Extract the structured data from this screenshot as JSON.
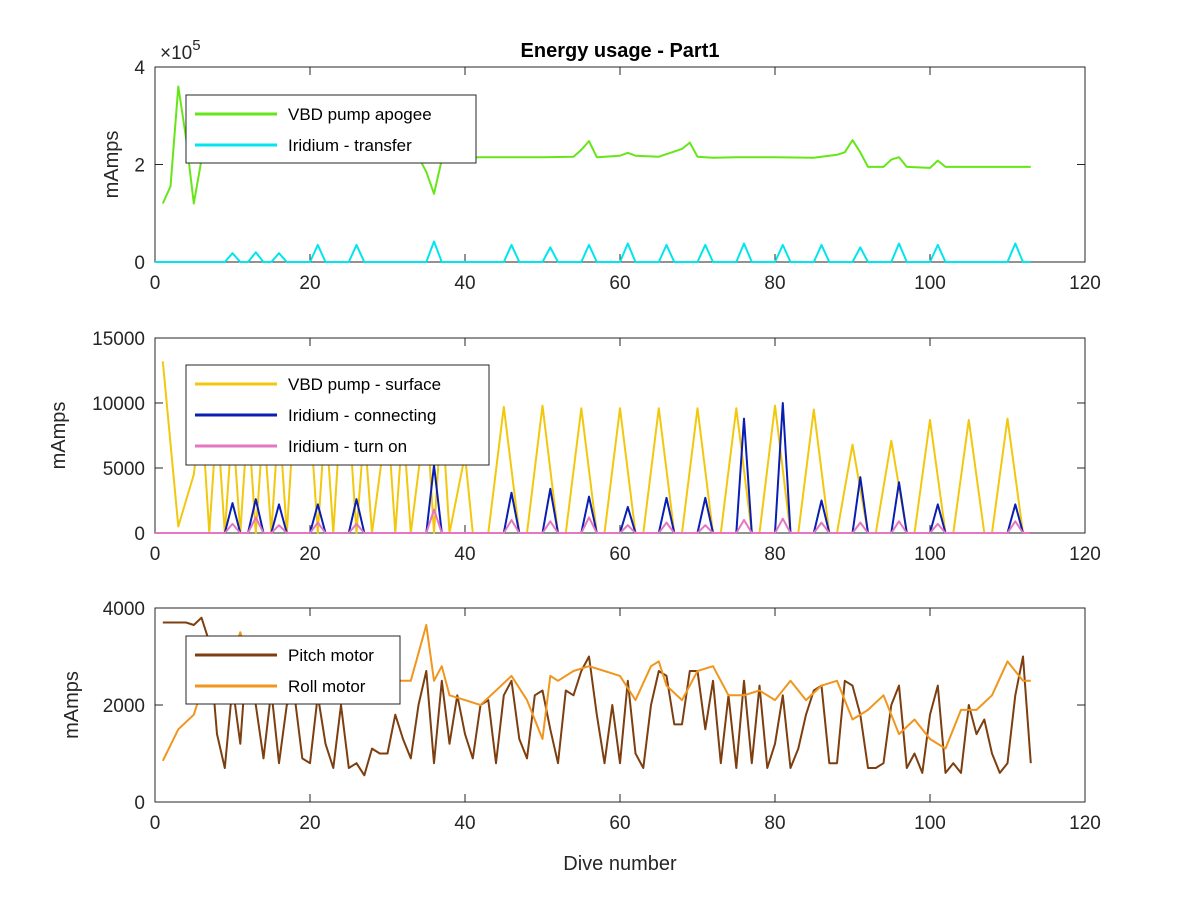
{
  "figure": {
    "title": "Energy usage - Part1",
    "xlabel": "Dive number"
  },
  "chart_data": [
    {
      "type": "line",
      "title": "Energy usage - Part1",
      "xlabel": "",
      "ylabel": "mAmps",
      "xlim": [
        0,
        120
      ],
      "ylim": [
        0,
        400000
      ],
      "xticks": [
        "0",
        "20",
        "40",
        "60",
        "80",
        "100",
        "120"
      ],
      "yticks": [
        "0",
        "2",
        "4"
      ],
      "ytick_values": [
        0,
        200000,
        400000
      ],
      "exponent": {
        "base": "×10",
        "power": "5"
      },
      "grid": false,
      "legend_position": "top-left",
      "series": [
        {
          "name": "VBD pump apogee",
          "color": "#66e619",
          "x": [
            1,
            2,
            3,
            4,
            5,
            6,
            7,
            8,
            10,
            15,
            20,
            30,
            34,
            35,
            36,
            37,
            38,
            40,
            45,
            50,
            54,
            55,
            56,
            57,
            60,
            61,
            62,
            65,
            68,
            69,
            70,
            72,
            75,
            80,
            85,
            88,
            89,
            90,
            91,
            92,
            94,
            95,
            96,
            97,
            100,
            101,
            102,
            105,
            110,
            113
          ],
          "values": [
            120000,
            155000,
            360000,
            255000,
            120000,
            210000,
            215000,
            215000,
            215000,
            215000,
            215000,
            215000,
            215000,
            185000,
            140000,
            210000,
            215000,
            215000,
            215000,
            215000,
            216000,
            230000,
            248000,
            215000,
            218000,
            224000,
            218000,
            216000,
            232000,
            245000,
            216000,
            214000,
            215000,
            215000,
            214000,
            220000,
            225000,
            250000,
            225000,
            195000,
            195000,
            210000,
            215000,
            195000,
            193000,
            208000,
            195000,
            195000,
            195000,
            195000
          ]
        },
        {
          "name": "Iridium - transfer",
          "color": "#00e5ee",
          "x": [
            0,
            9,
            10,
            11,
            12,
            13,
            14,
            15,
            16,
            17,
            20,
            21,
            22,
            25,
            26,
            27,
            35,
            36,
            37,
            45,
            46,
            47,
            50,
            51,
            52,
            55,
            56,
            57,
            60,
            61,
            62,
            65,
            66,
            67,
            70,
            71,
            72,
            75,
            76,
            77,
            80,
            81,
            82,
            85,
            86,
            87,
            90,
            91,
            92,
            95,
            96,
            97,
            100,
            101,
            102,
            110,
            111,
            112,
            113
          ],
          "values": [
            0,
            0,
            18000,
            0,
            0,
            20000,
            0,
            0,
            18000,
            0,
            0,
            35000,
            0,
            0,
            35000,
            0,
            0,
            42000,
            0,
            0,
            35000,
            0,
            0,
            30000,
            0,
            0,
            35000,
            0,
            0,
            38000,
            0,
            0,
            35000,
            0,
            0,
            35000,
            0,
            0,
            38000,
            0,
            0,
            35000,
            0,
            0,
            35000,
            0,
            0,
            30000,
            0,
            0,
            38000,
            0,
            0,
            35000,
            0,
            0,
            38000,
            0,
            0
          ]
        }
      ]
    },
    {
      "type": "line",
      "title": "",
      "xlabel": "",
      "ylabel": "mAmps",
      "xlim": [
        0,
        120
      ],
      "ylim": [
        0,
        15000
      ],
      "xticks": [
        "0",
        "20",
        "40",
        "60",
        "80",
        "100",
        "120"
      ],
      "yticks": [
        "0",
        "5000",
        "10000",
        "15000"
      ],
      "ytick_values": [
        0,
        5000,
        10000,
        15000
      ],
      "grid": false,
      "legend_position": "top-left",
      "series": [
        {
          "name": "VBD pump - surface",
          "color": "#f2c80f",
          "x": [
            1,
            3,
            5,
            6,
            7,
            8,
            9,
            10,
            11,
            12,
            13,
            14,
            15,
            16,
            17,
            18,
            20,
            21,
            22,
            23,
            24,
            25,
            26,
            27,
            28,
            30,
            31,
            32,
            33,
            35,
            36,
            37,
            38,
            40,
            41,
            43,
            45,
            47,
            48,
            50,
            52,
            53,
            55,
            57,
            58,
            60,
            62,
            63,
            65,
            67,
            68,
            70,
            72,
            73,
            75,
            77,
            78,
            80,
            82,
            83,
            85,
            87,
            88,
            90,
            92,
            93,
            95,
            97,
            98,
            100,
            102,
            103,
            105,
            107,
            108,
            110,
            112
          ],
          "values": [
            13200,
            500,
            4500,
            9500,
            0,
            9000,
            0,
            8500,
            0,
            9000,
            0,
            8500,
            0,
            9000,
            0,
            9500,
            9000,
            0,
            9000,
            0,
            9500,
            9000,
            0,
            8000,
            0,
            9000,
            0,
            8500,
            0,
            9500,
            0,
            9500,
            0,
            6000,
            0,
            0,
            9700,
            0,
            0,
            9800,
            0,
            0,
            9600,
            0,
            0,
            9600,
            0,
            0,
            9600,
            0,
            0,
            9600,
            0,
            0,
            9600,
            0,
            0,
            9800,
            0,
            0,
            9500,
            0,
            0,
            6800,
            0,
            0,
            7100,
            0,
            0,
            8700,
            0,
            0,
            8700,
            0,
            0,
            8800,
            0
          ]
        },
        {
          "name": "Iridium - connecting",
          "color": "#0a1eb4",
          "x": [
            0,
            9,
            10,
            11,
            12,
            13,
            14,
            15,
            16,
            17,
            20,
            21,
            22,
            25,
            26,
            27,
            35,
            36,
            37,
            45,
            46,
            47,
            50,
            51,
            52,
            55,
            56,
            57,
            60,
            61,
            62,
            65,
            66,
            67,
            70,
            71,
            72,
            75,
            76,
            77,
            80,
            81,
            82,
            85,
            86,
            87,
            90,
            91,
            92,
            95,
            96,
            97,
            100,
            101,
            102,
            110,
            111,
            112,
            113
          ],
          "values": [
            0,
            0,
            2300,
            0,
            0,
            2600,
            0,
            0,
            2200,
            0,
            0,
            2200,
            0,
            0,
            2600,
            0,
            0,
            5200,
            0,
            0,
            3100,
            0,
            0,
            3400,
            0,
            0,
            2800,
            0,
            0,
            2000,
            0,
            0,
            2700,
            0,
            0,
            2700,
            0,
            0,
            8800,
            0,
            0,
            10000,
            0,
            0,
            2500,
            0,
            0,
            4300,
            0,
            0,
            3900,
            0,
            0,
            2200,
            0,
            0,
            2200,
            0,
            0
          ]
        },
        {
          "name": "Iridium - turn on",
          "color": "#e377c2",
          "x": [
            0,
            9,
            10,
            11,
            12,
            13,
            14,
            15,
            16,
            17,
            20,
            21,
            22,
            25,
            26,
            27,
            35,
            36,
            37,
            45,
            46,
            47,
            50,
            51,
            52,
            55,
            56,
            57,
            60,
            61,
            62,
            65,
            66,
            67,
            70,
            71,
            72,
            75,
            76,
            77,
            80,
            81,
            82,
            85,
            86,
            87,
            90,
            91,
            92,
            95,
            96,
            97,
            100,
            101,
            102,
            110,
            111,
            112,
            113
          ],
          "values": [
            0,
            0,
            700,
            0,
            0,
            1200,
            0,
            0,
            600,
            0,
            0,
            800,
            0,
            0,
            700,
            0,
            0,
            1800,
            0,
            0,
            1000,
            0,
            0,
            900,
            0,
            0,
            1200,
            0,
            0,
            600,
            0,
            0,
            800,
            0,
            0,
            600,
            0,
            0,
            1000,
            0,
            0,
            1100,
            0,
            0,
            800,
            0,
            0,
            800,
            0,
            0,
            900,
            0,
            0,
            700,
            0,
            0,
            900,
            0,
            0
          ]
        }
      ]
    },
    {
      "type": "line",
      "title": "",
      "xlabel": "Dive number",
      "ylabel": "mAmps",
      "xlim": [
        0,
        120
      ],
      "ylim": [
        0,
        4000
      ],
      "xticks": [
        "0",
        "20",
        "40",
        "60",
        "80",
        "100",
        "120"
      ],
      "yticks": [
        "0",
        "2000",
        "4000"
      ],
      "ytick_values": [
        0,
        2000,
        4000
      ],
      "grid": false,
      "legend_position": "top-left",
      "series": [
        {
          "name": "Pitch motor",
          "color": "#7d3f0f",
          "x": [
            1,
            2,
            3,
            4,
            5,
            6,
            7,
            8,
            9,
            10,
            11,
            12,
            13,
            14,
            15,
            16,
            17,
            18,
            19,
            20,
            21,
            22,
            23,
            24,
            25,
            26,
            27,
            28,
            29,
            30,
            31,
            32,
            33,
            34,
            35,
            36,
            37,
            38,
            39,
            40,
            41,
            42,
            43,
            44,
            45,
            46,
            47,
            48,
            49,
            50,
            51,
            52,
            53,
            54,
            55,
            56,
            57,
            58,
            59,
            60,
            61,
            62,
            63,
            64,
            65,
            66,
            67,
            68,
            69,
            70,
            71,
            72,
            73,
            74,
            75,
            76,
            77,
            78,
            79,
            80,
            81,
            82,
            83,
            84,
            85,
            86,
            87,
            88,
            89,
            90,
            91,
            92,
            93,
            94,
            95,
            96,
            97,
            98,
            99,
            100,
            101,
            102,
            103,
            104,
            105,
            106,
            107,
            108,
            109,
            110,
            111,
            112,
            113
          ],
          "values": [
            3700,
            3700,
            3700,
            3700,
            3650,
            3800,
            3300,
            1400,
            700,
            2400,
            1200,
            3400,
            2000,
            900,
            2300,
            800,
            2000,
            2200,
            900,
            800,
            2200,
            1200,
            700,
            2000,
            700,
            800,
            550,
            1100,
            1000,
            1000,
            1800,
            1300,
            900,
            2000,
            2700,
            800,
            2500,
            1200,
            2200,
            1400,
            900,
            2000,
            2100,
            800,
            2200,
            2500,
            1300,
            900,
            2200,
            2300,
            1500,
            800,
            2300,
            2200,
            2700,
            3000,
            1800,
            800,
            2000,
            800,
            2500,
            1000,
            700,
            2000,
            2700,
            2600,
            1600,
            1600,
            2700,
            2700,
            1500,
            2500,
            800,
            2200,
            700,
            2500,
            800,
            2400,
            700,
            1200,
            2200,
            700,
            1100,
            1800,
            2300,
            2400,
            800,
            800,
            2500,
            2400,
            1800,
            700,
            700,
            800,
            2000,
            2400,
            700,
            1000,
            600,
            1800,
            2400,
            600,
            800,
            600,
            2000,
            1400,
            1700,
            1000,
            600,
            800,
            2200,
            3000,
            800
          ]
        },
        {
          "name": "Roll motor",
          "color": "#f0961e",
          "x": [
            1,
            3,
            5,
            7,
            9,
            11,
            13,
            15,
            17,
            19,
            21,
            23,
            25,
            27,
            29,
            31,
            33,
            35,
            36,
            37,
            38,
            40,
            42,
            44,
            46,
            48,
            50,
            51,
            52,
            54,
            56,
            58,
            60,
            62,
            64,
            65,
            66,
            68,
            70,
            72,
            74,
            76,
            78,
            80,
            82,
            84,
            86,
            88,
            90,
            92,
            94,
            96,
            98,
            100,
            102,
            104,
            106,
            108,
            110,
            112,
            113
          ],
          "values": [
            850,
            1500,
            1800,
            2800,
            2600,
            3500,
            2400,
            2300,
            2300,
            2100,
            2500,
            2400,
            2400,
            2500,
            2600,
            2500,
            2500,
            3650,
            2500,
            2800,
            2200,
            2100,
            2000,
            2300,
            2600,
            2100,
            1300,
            2600,
            2500,
            2700,
            2800,
            2700,
            2600,
            2100,
            2800,
            2900,
            2400,
            2100,
            2700,
            2800,
            2200,
            2200,
            2300,
            2100,
            2500,
            2100,
            2400,
            2500,
            1700,
            1900,
            2200,
            1400,
            1700,
            1300,
            1100,
            1900,
            1900,
            2200,
            2900,
            2500,
            2500
          ]
        }
      ]
    }
  ]
}
